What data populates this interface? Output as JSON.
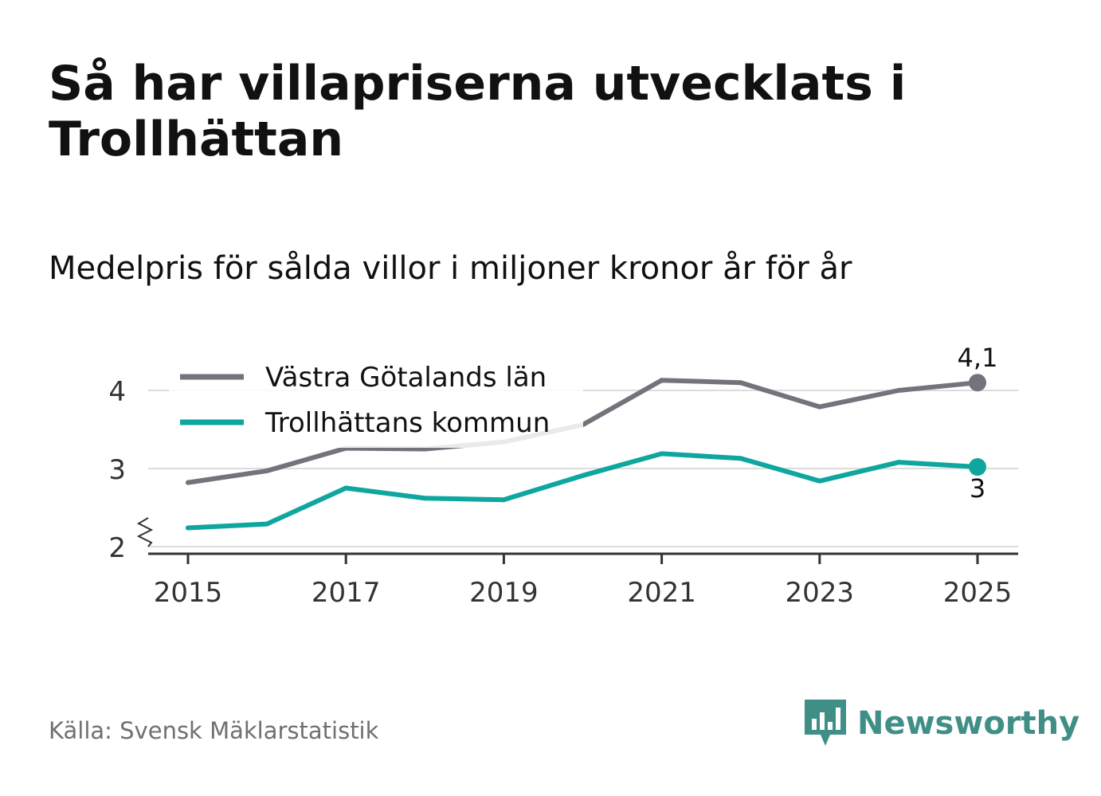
{
  "title": "Så har villapriserna utvecklats i Trollhättan",
  "subtitle": "Medelpris för sålda villor i miljoner kronor år för år",
  "source": "Källa: Svensk Mäklarstatistik",
  "brand": {
    "name": "Newsworthy",
    "icon": "newsworthy-logo-icon",
    "color": "#3f8f86"
  },
  "chart_data": {
    "type": "line",
    "title": "Så har villapriserna utvecklats i Trollhättan",
    "subtitle": "Medelpris för sålda villor i miljoner kronor år för år",
    "xlabel": "",
    "ylabel": "",
    "x": [
      2015,
      2016,
      2017,
      2018,
      2019,
      2020,
      2021,
      2022,
      2023,
      2024,
      2025
    ],
    "xticks": [
      "2015",
      "2017",
      "2019",
      "2021",
      "2023",
      "2025"
    ],
    "yticks": [
      "2",
      "3",
      "4"
    ],
    "ylim": [
      2,
      4.3
    ],
    "y_axis_break": true,
    "grid": "horizontal",
    "legend_position": "top-left",
    "series": [
      {
        "name": "Västra Götalands län",
        "color": "#73737b",
        "values": [
          2.82,
          2.97,
          3.26,
          3.25,
          3.34,
          3.56,
          4.13,
          4.1,
          3.79,
          4.0,
          4.1
        ],
        "end_label": "4,1"
      },
      {
        "name": "Trollhättans kommun",
        "color": "#0ea69e",
        "values": [
          2.24,
          2.29,
          2.75,
          2.62,
          2.6,
          2.91,
          3.19,
          3.13,
          2.84,
          3.08,
          3.02
        ],
        "end_label": "3"
      }
    ]
  }
}
